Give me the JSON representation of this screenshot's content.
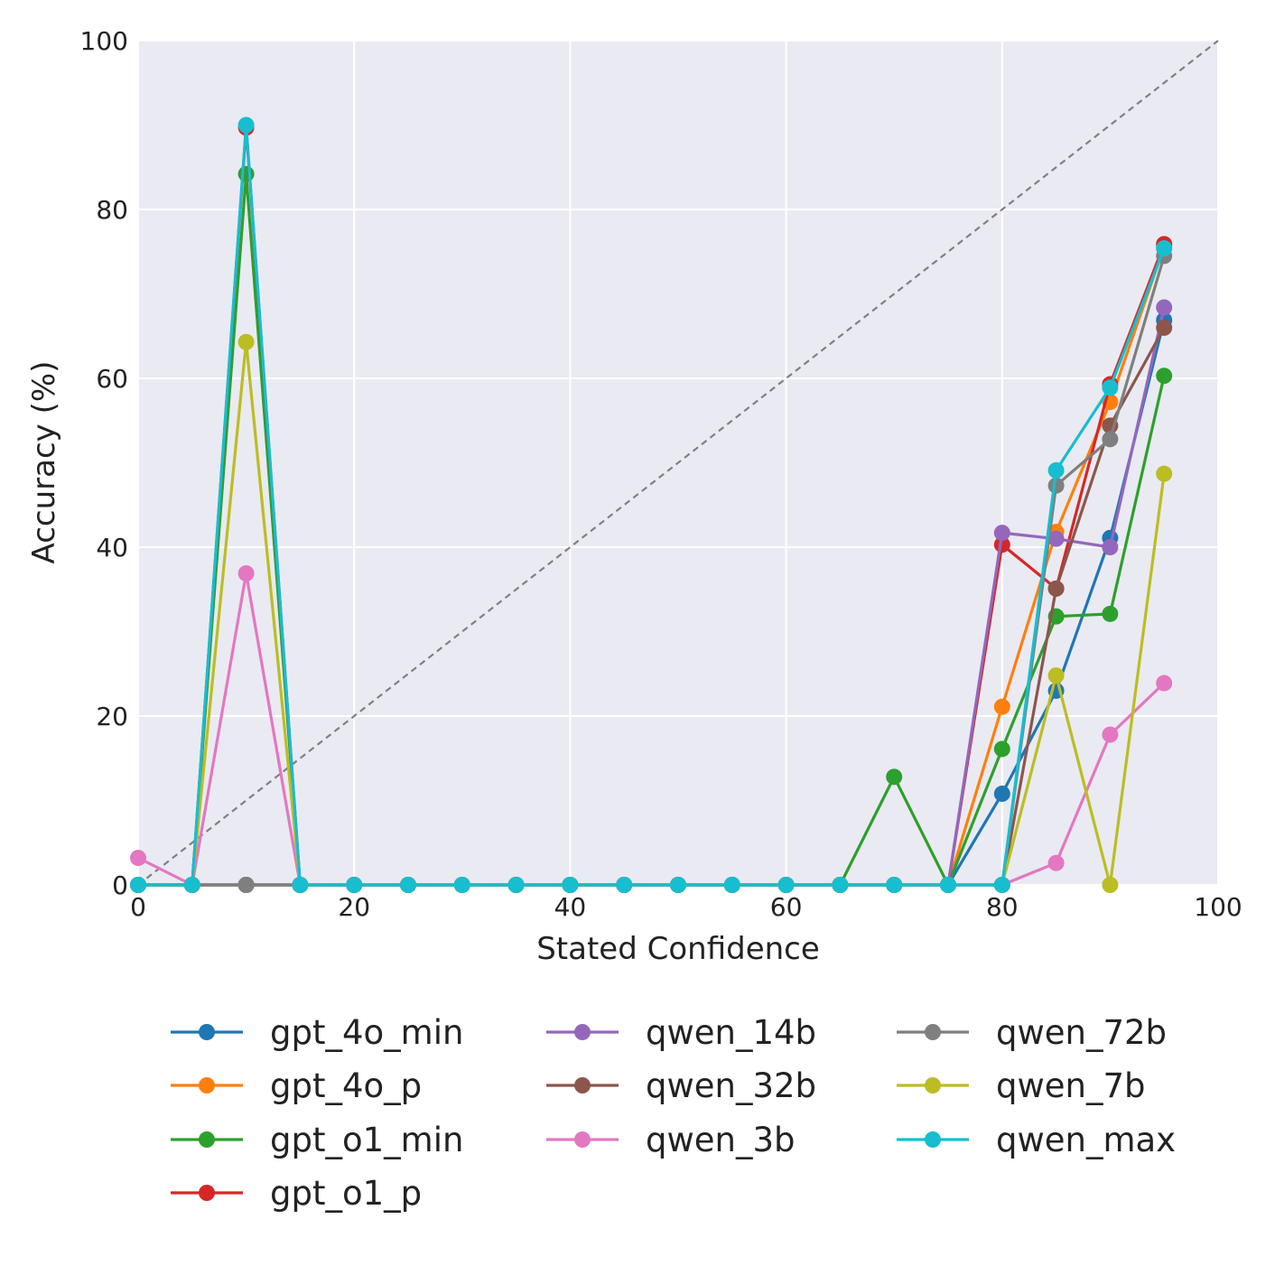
{
  "chart_data": {
    "type": "line",
    "title": "",
    "xlabel": "Stated Confidence",
    "ylabel": "Accuracy (%)",
    "xlim": [
      0,
      100
    ],
    "ylim": [
      0,
      100
    ],
    "xticks": [
      "0",
      "20",
      "40",
      "60",
      "80",
      "100"
    ],
    "yticks": [
      "0",
      "20",
      "40",
      "60",
      "80",
      "100"
    ],
    "grid": true,
    "diagonal_reference": true,
    "legend_position": "bottom",
    "x": [
      0,
      5,
      10,
      15,
      20,
      25,
      30,
      35,
      40,
      45,
      50,
      55,
      60,
      65,
      70,
      75,
      80,
      85,
      90,
      95
    ],
    "series": [
      {
        "name": "gpt_4o_min",
        "color": "#1f77b4",
        "values": [
          0,
          0,
          0,
          0,
          0,
          0,
          0,
          0,
          0,
          0,
          0,
          0,
          0,
          0,
          0,
          0,
          10.8,
          23.0,
          41.1,
          66.9
        ]
      },
      {
        "name": "gpt_4o_p",
        "color": "#ff7f0e",
        "values": [
          0,
          0,
          0,
          0,
          0,
          0,
          0,
          0,
          0,
          0,
          0,
          0,
          0,
          0,
          0,
          0,
          21.1,
          41.8,
          57.2,
          75.6
        ]
      },
      {
        "name": "gpt_o1_min",
        "color": "#2ca02c",
        "values": [
          0,
          0,
          84.2,
          0,
          0,
          0,
          0,
          0,
          0,
          0,
          0,
          0,
          0,
          0,
          12.8,
          0,
          16.1,
          31.8,
          32.1,
          60.3
        ]
      },
      {
        "name": "gpt_o1_p",
        "color": "#d62728",
        "values": [
          0,
          0,
          89.7,
          0,
          0,
          0,
          0,
          0,
          0,
          0,
          0,
          0,
          0,
          0,
          0,
          0,
          40.3,
          35.1,
          59.3,
          75.9
        ]
      },
      {
        "name": "qwen_14b",
        "color": "#9467bd",
        "values": [
          0,
          0,
          0,
          0,
          0,
          0,
          0,
          0,
          0,
          0,
          0,
          0,
          0,
          0,
          0,
          0,
          41.7,
          41.0,
          40.0,
          68.4
        ]
      },
      {
        "name": "qwen_32b",
        "color": "#8c564b",
        "values": [
          0,
          0,
          0,
          0,
          0,
          0,
          0,
          0,
          0,
          0,
          0,
          0,
          0,
          0,
          0,
          0,
          0,
          35.1,
          54.4,
          66.0
        ]
      },
      {
        "name": "qwen_3b",
        "color": "#e377c2",
        "values": [
          3.2,
          0,
          36.9,
          0,
          0,
          0,
          0,
          0,
          0,
          0,
          0,
          0,
          0,
          0,
          0,
          0,
          0,
          2.6,
          17.8,
          23.9
        ]
      },
      {
        "name": "qwen_72b",
        "color": "#7f7f7f",
        "values": [
          0,
          0,
          0,
          0,
          0,
          0,
          0,
          0,
          0,
          0,
          0,
          0,
          0,
          0,
          0,
          0,
          0,
          47.3,
          52.8,
          74.5
        ]
      },
      {
        "name": "qwen_7b",
        "color": "#bcbd22",
        "values": [
          0,
          0,
          64.3,
          0,
          0,
          0,
          0,
          0,
          0,
          0,
          0,
          0,
          0,
          0,
          0,
          0,
          0,
          24.8,
          0,
          48.7
        ]
      },
      {
        "name": "qwen_max",
        "color": "#17becf",
        "values": [
          0,
          0,
          90.0,
          0,
          0,
          0,
          0,
          0,
          0,
          0,
          0,
          0,
          0,
          0,
          0,
          0,
          0,
          49.1,
          58.9,
          75.4
        ]
      }
    ]
  }
}
